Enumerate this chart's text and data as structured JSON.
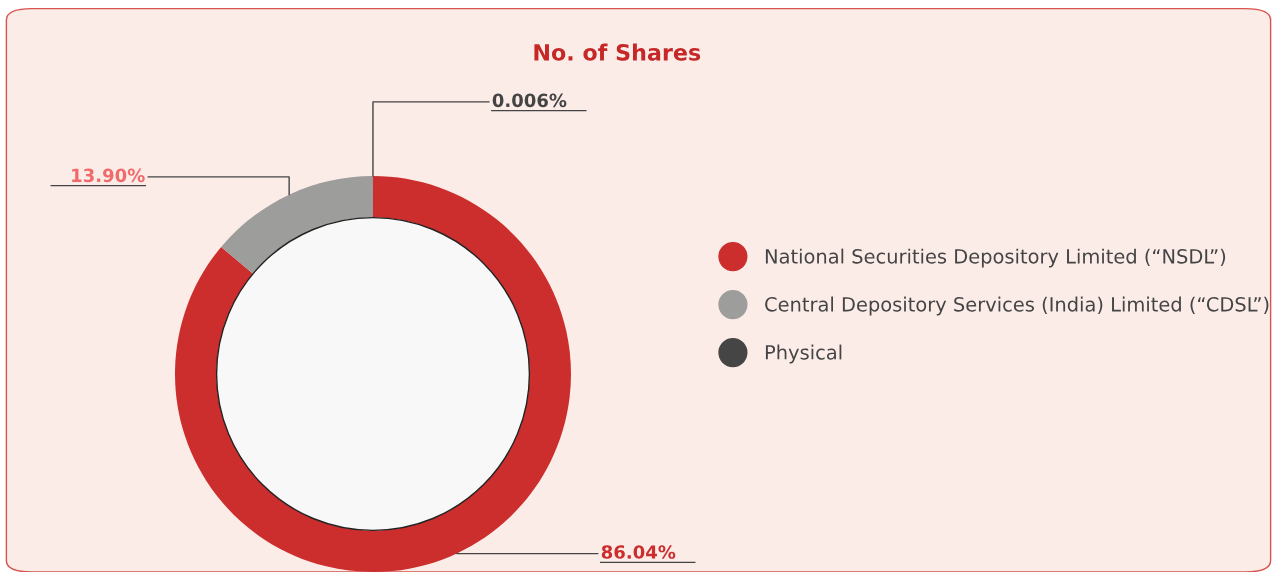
{
  "chart_data": {
    "type": "donut",
    "title": "No. of Shares",
    "categories": [
      "National Securities Depository Limited (“NSDL”)",
      "Central Depository Services (India) Limited (“CDSL”)",
      "Physical"
    ],
    "values": [
      86.04,
      13.9,
      0.006
    ],
    "colors": [
      "#cc2e2e",
      "#9d9d9b",
      "#454545"
    ],
    "value_labels": [
      "86.04%",
      "13.90%",
      "0.006%"
    ],
    "legend": "right"
  }
}
